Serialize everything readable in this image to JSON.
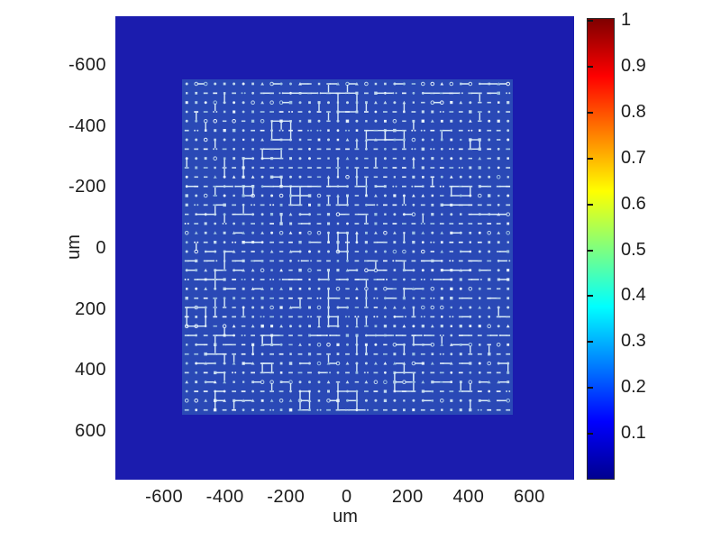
{
  "chart_data": {
    "type": "heatmap",
    "title": "",
    "xlabel": "um",
    "ylabel": "um",
    "xlim": [
      -760,
      745
    ],
    "ylim_top_to_bottom": [
      -765,
      780
    ],
    "x_ticks": [
      -600,
      -400,
      -200,
      0,
      200,
      400,
      600
    ],
    "y_ticks": [
      -600,
      -400,
      -200,
      0,
      200,
      400,
      600
    ],
    "grid": "off",
    "legend": "none",
    "colorbar": {
      "colormap": "jet",
      "range": [
        0,
        1
      ],
      "position": "right",
      "tick_values": [
        1,
        0.9,
        0.8,
        0.7,
        0.6,
        0.5,
        0.4,
        0.3,
        0.2,
        0.1
      ],
      "tick_labels": [
        "1",
        "0.9",
        "0.8",
        "0.7",
        "0.6",
        "0.5",
        "0.4",
        "0.3",
        "0.2",
        "0.1"
      ]
    },
    "field": {
      "description": "uniform low-intensity background with a central square array of bright micro-features connected by sparse circuit-like traces",
      "background_value": 0.05,
      "array_region": {
        "x_um": [
          -540,
          540
        ],
        "y_um": [
          -550,
          560
        ],
        "background_value": 0.12,
        "feature_value_range": [
          0.2,
          0.5
        ],
        "pitch_um": 30,
        "rows": 36,
        "cols": 35
      },
      "seed": 1337
    },
    "colors": {
      "field_background": "#1b1cae",
      "array_background": "#2a49b6",
      "dot_palette": [
        "#c2d9ee",
        "#e6f2fa",
        "#9cc0e2",
        "#aecce8"
      ],
      "trace_color": "#d9ebf7",
      "tick_text": "#1c1c1c",
      "jet_stops_top_to_bottom": [
        "#7f0000",
        "#ff0000",
        "#ffff00",
        "#00ffff",
        "#0000ff",
        "#00008f"
      ]
    }
  }
}
